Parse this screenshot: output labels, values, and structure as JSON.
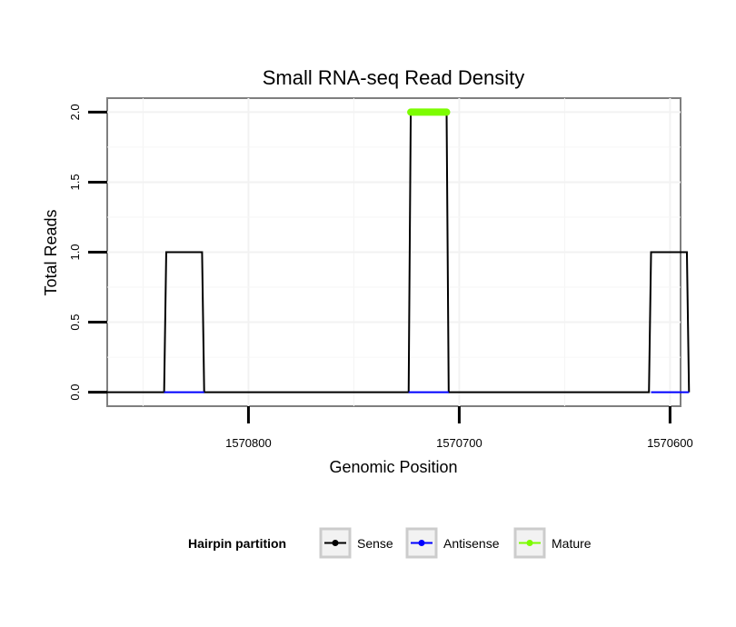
{
  "chart_data": {
    "type": "line",
    "title": "Small RNA-seq Read Density",
    "xlabel": "Genomic Position",
    "ylabel": "Total Reads",
    "xlim": [
      1570867,
      1570595
    ],
    "x_reversed": true,
    "ylim": [
      -0.1,
      2.1
    ],
    "x_ticks": [
      1570800,
      1570700,
      1570600
    ],
    "x_tick_labels": [
      "1570800",
      "1570700",
      "1570600"
    ],
    "y_ticks": [
      0,
      0.5,
      1,
      1.5,
      2
    ],
    "y_tick_labels": [
      "0.0",
      "0.5",
      "1.0",
      "1.5",
      "2.0"
    ],
    "grid": true,
    "legend": {
      "title": "Hairpin partition",
      "position": "bottom",
      "entries": [
        "Sense",
        "Antisense",
        "Mature"
      ]
    },
    "series": [
      {
        "name": "Sense",
        "color": "#000000",
        "x": [
          1570867,
          1570840,
          1570839,
          1570822,
          1570821,
          1570724,
          1570723,
          1570706,
          1570705,
          1570610,
          1570609,
          1570592,
          1570591
        ],
        "y": [
          0,
          0,
          1,
          1,
          0,
          0,
          2,
          2,
          0,
          0,
          1,
          1,
          0
        ]
      },
      {
        "name": "Antisense",
        "color": "#0000ff",
        "segments": [
          {
            "x": [
              1570840,
              1570821
            ],
            "y": [
              0,
              0
            ]
          },
          {
            "x": [
              1570724,
              1570705
            ],
            "y": [
              0,
              0
            ]
          },
          {
            "x": [
              1570609,
              1570591
            ],
            "y": [
              0,
              0
            ]
          }
        ]
      },
      {
        "name": "Mature",
        "color": "#7cfc00",
        "x": [
          1570723,
          1570706
        ],
        "y": [
          2,
          2
        ]
      }
    ]
  }
}
